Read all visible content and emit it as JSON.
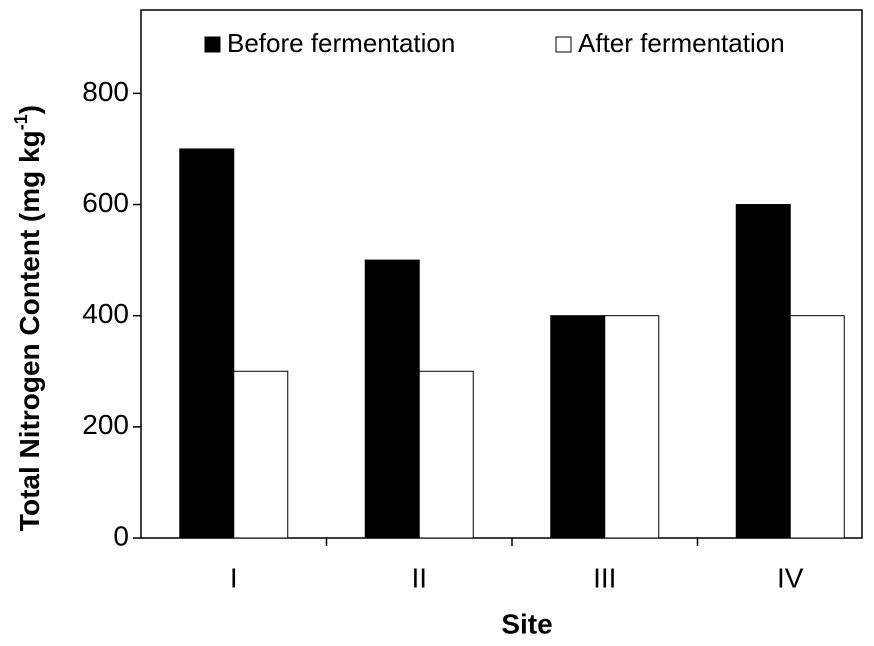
{
  "chart_data": {
    "type": "bar",
    "categories": [
      "I",
      "II",
      "III",
      "IV"
    ],
    "series": [
      {
        "name": "Before fermentation",
        "color": "#000000",
        "values": [
          700,
          500,
          400,
          600
        ]
      },
      {
        "name": "After fermentation",
        "color": "#ffffff",
        "values": [
          300,
          300,
          400,
          400
        ]
      }
    ],
    "x_label": "Site",
    "y_label": "Total Nitrogen Content (mg kg",
    "y_label_sup": "-1",
    "y_label_end": ")",
    "ylim": [
      0,
      950
    ],
    "yticks": [
      0,
      200,
      400,
      600,
      800
    ],
    "legend": "top"
  }
}
